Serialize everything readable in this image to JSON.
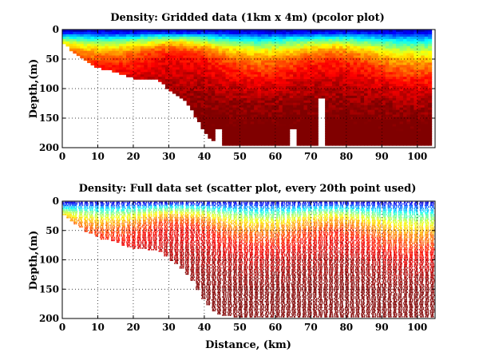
{
  "chart_data": [
    {
      "type": "heatmap",
      "title": "Density: Gridded data (1km x 4m) (pcolor plot)",
      "xlabel": "",
      "ylabel": "Depth,(m)",
      "xlim": [
        0,
        105
      ],
      "ylim": [
        0,
        200
      ],
      "y_reversed": true,
      "xticks": [
        0,
        10,
        20,
        30,
        40,
        50,
        60,
        70,
        80,
        90,
        100
      ],
      "yticks": [
        0,
        50,
        100,
        150,
        200
      ],
      "grid": "dotted",
      "colormap": "jet",
      "cell_size": {
        "dx_km": 1,
        "dz_m": 4
      },
      "data_bottom_profile": {
        "distance_km": [
          0,
          2,
          4,
          6,
          8,
          10,
          14,
          18,
          20,
          24,
          28,
          30,
          33,
          36,
          38,
          40,
          42,
          44,
          48,
          55,
          65,
          80,
          95,
          100,
          103
        ],
        "depth_m": [
          20,
          30,
          40,
          50,
          55,
          62,
          68,
          76,
          80,
          82,
          85,
          100,
          110,
          130,
          150,
          170,
          185,
          193,
          196,
          196,
          196,
          196,
          196,
          196,
          196
        ]
      },
      "gaps": [
        {
          "distance_km": 44,
          "from_depth_m": 168
        },
        {
          "distance_km": 65,
          "from_depth_m": 165
        },
        {
          "distance_km": 73,
          "from_depth_m": 115
        }
      ]
    },
    {
      "type": "scatter",
      "title": "Density: Full data set (scatter plot, every 20th point used)",
      "xlabel": "Distance, (km)",
      "ylabel": "Depth,(m)",
      "xlim": [
        0,
        105
      ],
      "ylim": [
        0,
        200
      ],
      "y_reversed": true,
      "xticks": [
        0,
        10,
        20,
        30,
        40,
        50,
        60,
        70,
        80,
        90,
        100
      ],
      "yticks": [
        0,
        50,
        100,
        150,
        200
      ],
      "grid": "dotted",
      "colormap": "jet",
      "cast_distances_km": [
        0.5,
        1.5,
        2.5,
        3.5,
        5,
        6.5,
        8,
        9.5,
        11,
        12.5,
        14,
        15.5,
        17,
        18.5,
        20,
        21.5,
        23,
        24.5,
        26,
        27.5,
        29,
        30.5,
        32,
        33.5,
        35,
        36.5,
        38,
        39.5,
        41,
        42.5,
        44,
        45.5,
        47,
        48.5,
        50,
        51.5,
        53,
        54.5,
        56,
        57.5,
        59,
        60.5,
        62,
        63.5,
        65,
        66.5,
        68,
        69.5,
        71,
        72.5,
        74,
        75.5,
        77,
        78.5,
        80,
        81.5,
        83,
        84.5,
        86,
        87.5,
        89,
        90.5,
        92,
        93.5,
        95,
        96.5,
        98,
        99.5,
        101,
        102.5,
        104
      ]
    }
  ]
}
